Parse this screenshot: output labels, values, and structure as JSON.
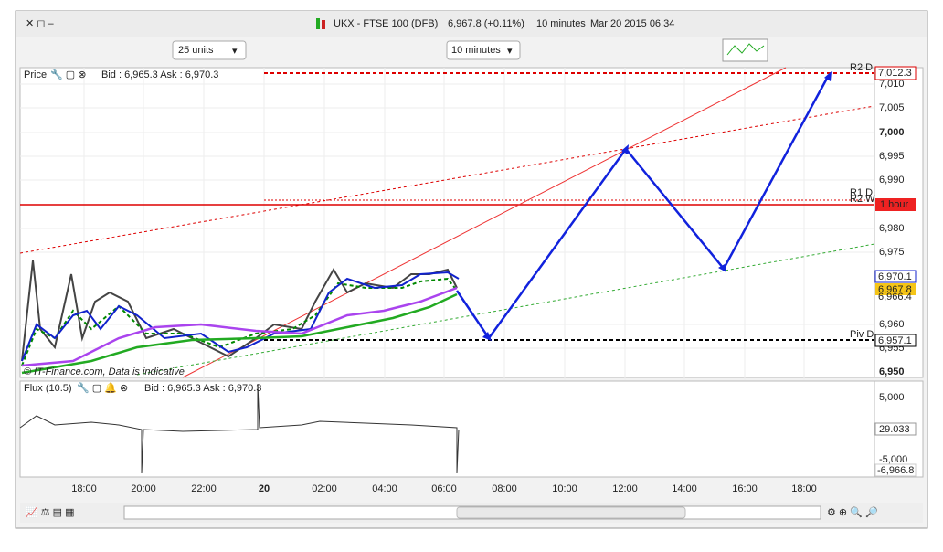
{
  "title_bar": {
    "symbol": "UKX - FTSE 100 (DFB)",
    "quote": "6,967.8 (+0.11%)",
    "interval": "10 minutes",
    "datetime": "Mar 20 2015 06:34"
  },
  "toolbar": {
    "units": "25 units",
    "interval": "10 minutes"
  },
  "price_panel": {
    "label": "Price",
    "bid_ask": "Bid : 6,965.3 Ask : 6,970.3",
    "watermark": "© IT-Finance.com, Data is indicative",
    "y_labels": [
      "7,010",
      "7,005",
      "7,000",
      "6,995",
      "6,990",
      "6,980",
      "6,975",
      "6,960",
      "6,955",
      "6,950"
    ],
    "level_labels": [
      "R2 D",
      "R1 D",
      "R2 W",
      "Piv D"
    ],
    "tags": [
      "7,012.3",
      "1 hour",
      "6,970.1",
      "6,967.8",
      "6,966.4",
      "6,957.1"
    ]
  },
  "flux_panel": {
    "label": "Flux (10.5)",
    "bid_ask": "Bid : 6,965.3 Ask : 6,970.3",
    "y_labels": [
      "5,000",
      "-5,000"
    ],
    "tags": [
      "29.033",
      "-6,966.8"
    ]
  },
  "x_labels": [
    "18:00",
    "20:00",
    "22:00",
    "20",
    "02:00",
    "04:00",
    "06:00",
    "08:00",
    "10:00",
    "12:00",
    "14:00",
    "16:00",
    "18:00"
  ]
}
